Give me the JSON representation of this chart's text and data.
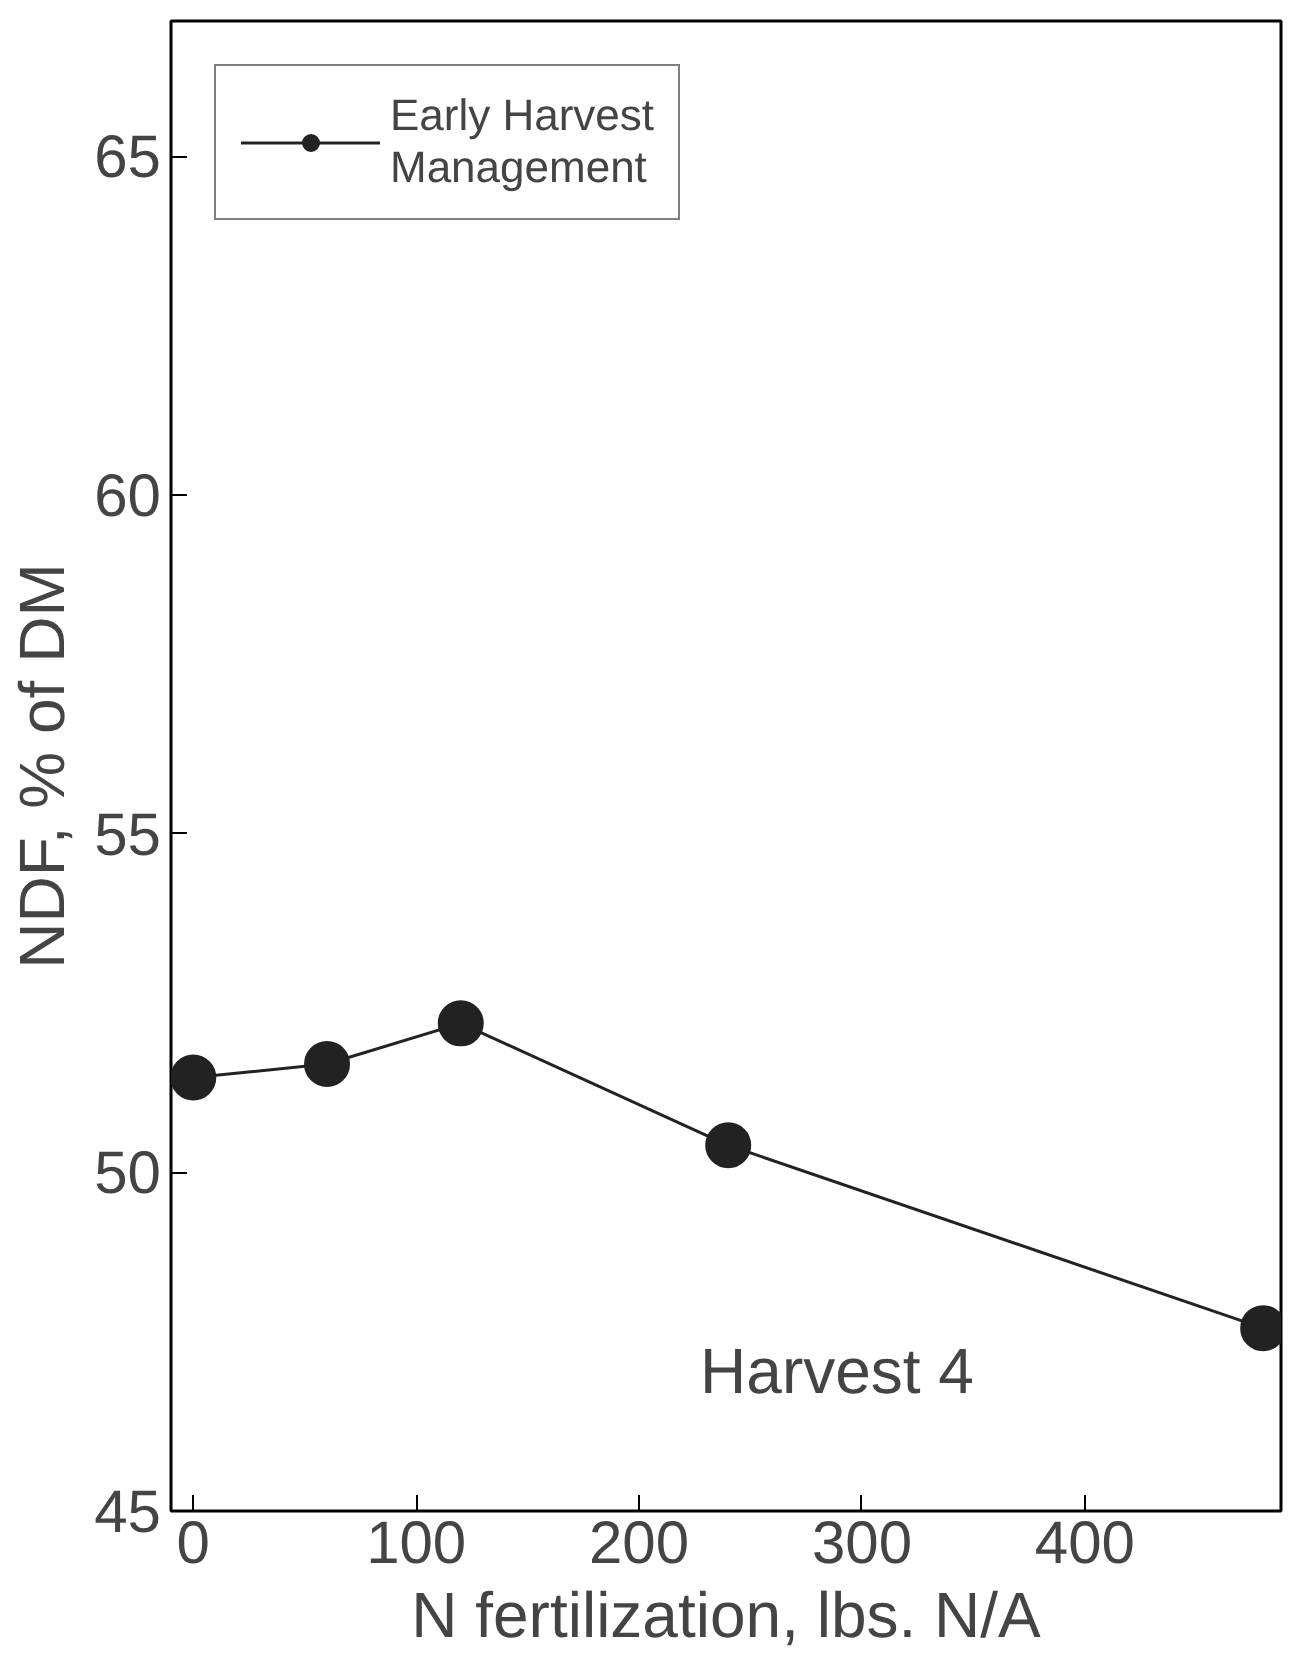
{
  "chart_data": {
    "type": "line",
    "xlabel": "N fertilization, lbs. N/A",
    "ylabel": "NDF, % of DM",
    "x": [
      0,
      60,
      120,
      240,
      480
    ],
    "series": [
      {
        "name": "Early Harvest\nManagement",
        "color": "#222222",
        "values": [
          51.4,
          51.6,
          52.2,
          50.4,
          47.7
        ]
      }
    ],
    "xlim": [
      -10,
      488
    ],
    "ylim": [
      45,
      67
    ],
    "xticks": [
      0,
      100,
      200,
      300,
      400
    ],
    "yticks": [
      45,
      50,
      55,
      60,
      65
    ],
    "annotations": [
      "Harvest 4"
    ],
    "legend": "top left",
    "marker": "circle",
    "line_style": "solid",
    "grid": false
  }
}
